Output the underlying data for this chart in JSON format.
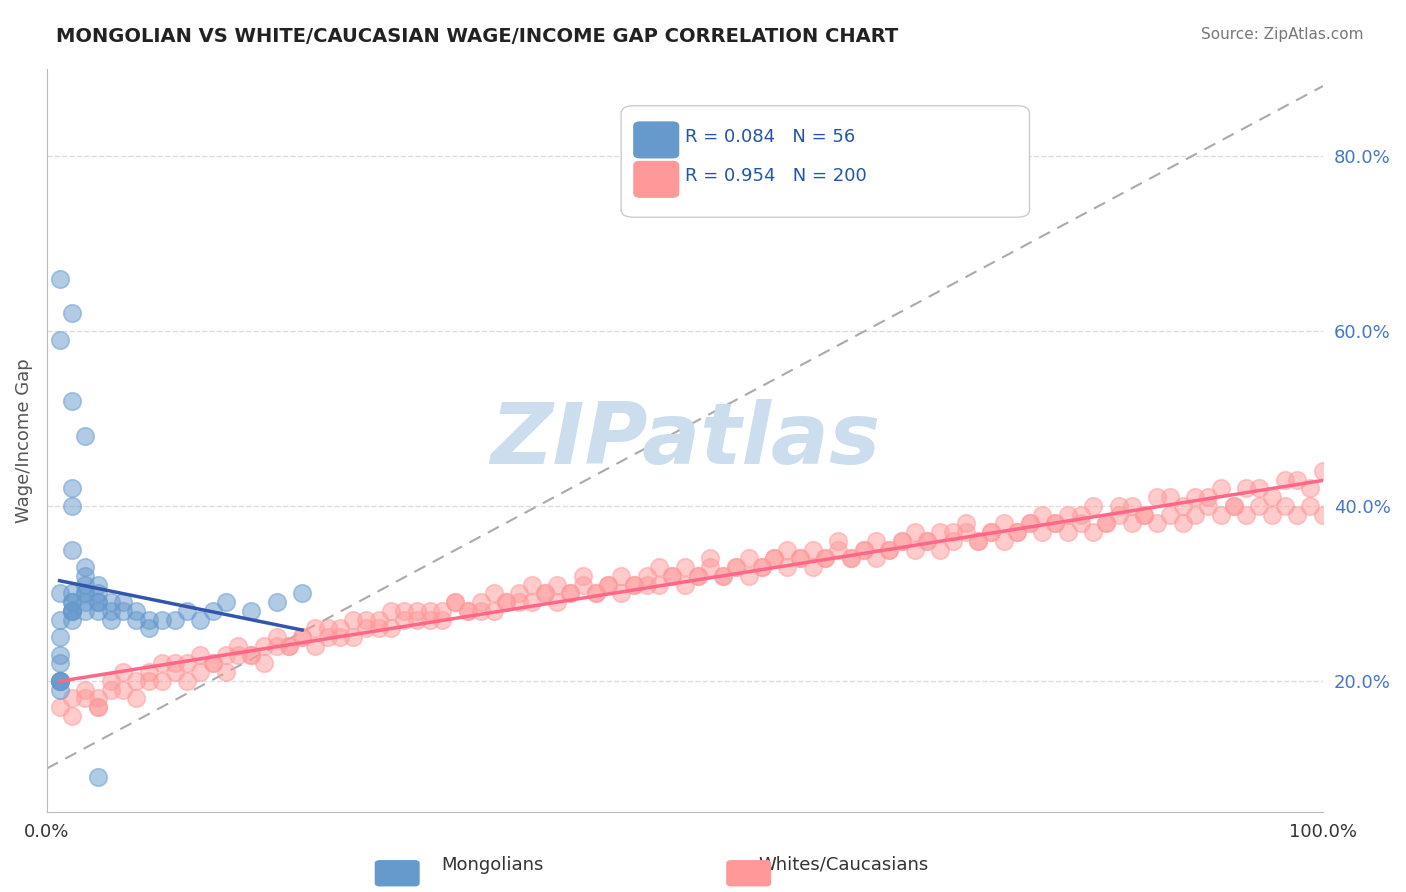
{
  "title": "MONGOLIAN VS WHITE/CAUCASIAN WAGE/INCOME GAP CORRELATION CHART",
  "source": "Source: ZipAtlas.com",
  "xlabel": "",
  "ylabel": "Wage/Income Gap",
  "xlim": [
    0.0,
    1.0
  ],
  "ylim": [
    0.05,
    0.9
  ],
  "xtick_labels": [
    "0.0%",
    "100.0%"
  ],
  "ytick_labels_right": [
    "20.0%",
    "40.0%",
    "60.0%",
    "80.0%"
  ],
  "ytick_vals_right": [
    0.2,
    0.4,
    0.6,
    0.8
  ],
  "legend_blue_label": "Mongolians",
  "legend_pink_label": "Whites/Caucasians",
  "R_blue": "0.084",
  "N_blue": "56",
  "R_pink": "0.954",
  "N_pink": "200",
  "blue_color": "#6699CC",
  "pink_color": "#FF9999",
  "trend_blue_color": "#3355AA",
  "trend_pink_color": "#FF6688",
  "watermark_text": "ZIPatlas",
  "watermark_color": "#CCDDEE",
  "background_color": "#FFFFFF",
  "grid_color": "#DDDDDD",
  "blue_scatter_x": [
    0.01,
    0.01,
    0.01,
    0.01,
    0.01,
    0.01,
    0.01,
    0.01,
    0.01,
    0.01,
    0.02,
    0.02,
    0.02,
    0.02,
    0.02,
    0.02,
    0.02,
    0.02,
    0.02,
    0.02,
    0.03,
    0.03,
    0.03,
    0.03,
    0.03,
    0.03,
    0.03,
    0.04,
    0.04,
    0.04,
    0.04,
    0.04,
    0.05,
    0.05,
    0.05,
    0.06,
    0.06,
    0.07,
    0.07,
    0.08,
    0.08,
    0.09,
    0.1,
    0.11,
    0.12,
    0.13,
    0.14,
    0.16,
    0.18,
    0.2,
    0.01,
    0.01,
    0.02,
    0.02,
    0.03,
    0.04
  ],
  "blue_scatter_y": [
    0.3,
    0.27,
    0.25,
    0.23,
    0.22,
    0.2,
    0.2,
    0.2,
    0.2,
    0.19,
    0.4,
    0.42,
    0.35,
    0.3,
    0.29,
    0.29,
    0.28,
    0.28,
    0.28,
    0.27,
    0.33,
    0.32,
    0.31,
    0.3,
    0.3,
    0.29,
    0.28,
    0.31,
    0.3,
    0.29,
    0.29,
    0.28,
    0.29,
    0.28,
    0.27,
    0.29,
    0.28,
    0.28,
    0.27,
    0.27,
    0.26,
    0.27,
    0.27,
    0.28,
    0.27,
    0.28,
    0.29,
    0.28,
    0.29,
    0.3,
    0.59,
    0.66,
    0.62,
    0.52,
    0.48,
    0.09
  ],
  "pink_scatter_x": [
    0.01,
    0.02,
    0.03,
    0.04,
    0.05,
    0.06,
    0.07,
    0.08,
    0.09,
    0.1,
    0.11,
    0.12,
    0.13,
    0.14,
    0.15,
    0.16,
    0.17,
    0.18,
    0.19,
    0.2,
    0.21,
    0.22,
    0.23,
    0.24,
    0.25,
    0.26,
    0.27,
    0.28,
    0.29,
    0.3,
    0.31,
    0.32,
    0.33,
    0.34,
    0.35,
    0.36,
    0.37,
    0.38,
    0.39,
    0.4,
    0.41,
    0.42,
    0.43,
    0.44,
    0.45,
    0.46,
    0.47,
    0.48,
    0.49,
    0.5,
    0.51,
    0.52,
    0.53,
    0.54,
    0.55,
    0.56,
    0.57,
    0.58,
    0.59,
    0.6,
    0.61,
    0.62,
    0.63,
    0.64,
    0.65,
    0.66,
    0.67,
    0.68,
    0.69,
    0.7,
    0.71,
    0.72,
    0.73,
    0.74,
    0.75,
    0.76,
    0.77,
    0.78,
    0.79,
    0.8,
    0.81,
    0.82,
    0.83,
    0.84,
    0.85,
    0.86,
    0.87,
    0.88,
    0.89,
    0.9,
    0.91,
    0.92,
    0.93,
    0.94,
    0.95,
    0.96,
    0.97,
    0.98,
    0.99,
    1.0,
    0.05,
    0.08,
    0.1,
    0.12,
    0.15,
    0.18,
    0.2,
    0.22,
    0.25,
    0.28,
    0.3,
    0.32,
    0.35,
    0.38,
    0.4,
    0.42,
    0.45,
    0.48,
    0.5,
    0.52,
    0.55,
    0.58,
    0.6,
    0.62,
    0.65,
    0.68,
    0.7,
    0.72,
    0.75,
    0.78,
    0.8,
    0.82,
    0.85,
    0.88,
    0.9,
    0.92,
    0.95,
    0.98,
    0.03,
    0.06,
    0.09,
    0.13,
    0.16,
    0.19,
    0.23,
    0.26,
    0.29,
    0.33,
    0.36,
    0.39,
    0.43,
    0.46,
    0.49,
    0.53,
    0.56,
    0.59,
    0.63,
    0.66,
    0.69,
    0.73,
    0.76,
    0.79,
    0.83,
    0.86,
    0.89,
    0.93,
    0.96,
    0.99,
    0.04,
    0.07,
    0.11,
    0.14,
    0.17,
    0.21,
    0.24,
    0.27,
    0.31,
    0.34,
    0.37,
    0.41,
    0.44,
    0.47,
    0.51,
    0.54,
    0.57,
    0.61,
    0.64,
    0.67,
    0.71,
    0.74,
    0.77,
    0.81,
    0.84,
    0.87,
    0.91,
    0.94,
    0.97,
    1.0,
    0.02,
    0.04
  ],
  "pink_scatter_y": [
    0.17,
    0.18,
    0.19,
    0.18,
    0.2,
    0.21,
    0.2,
    0.21,
    0.22,
    0.21,
    0.22,
    0.23,
    0.22,
    0.23,
    0.24,
    0.23,
    0.24,
    0.25,
    0.24,
    0.25,
    0.26,
    0.25,
    0.26,
    0.27,
    0.26,
    0.27,
    0.28,
    0.27,
    0.28,
    0.27,
    0.28,
    0.29,
    0.28,
    0.29,
    0.28,
    0.29,
    0.3,
    0.29,
    0.3,
    0.29,
    0.3,
    0.31,
    0.3,
    0.31,
    0.3,
    0.31,
    0.32,
    0.31,
    0.32,
    0.31,
    0.32,
    0.33,
    0.32,
    0.33,
    0.32,
    0.33,
    0.34,
    0.33,
    0.34,
    0.33,
    0.34,
    0.35,
    0.34,
    0.35,
    0.34,
    0.35,
    0.36,
    0.35,
    0.36,
    0.35,
    0.36,
    0.37,
    0.36,
    0.37,
    0.36,
    0.37,
    0.38,
    0.37,
    0.38,
    0.37,
    0.38,
    0.37,
    0.38,
    0.39,
    0.38,
    0.39,
    0.38,
    0.39,
    0.38,
    0.39,
    0.4,
    0.39,
    0.4,
    0.39,
    0.4,
    0.39,
    0.4,
    0.39,
    0.4,
    0.39,
    0.19,
    0.2,
    0.22,
    0.21,
    0.23,
    0.24,
    0.25,
    0.26,
    0.27,
    0.28,
    0.28,
    0.29,
    0.3,
    0.31,
    0.31,
    0.32,
    0.32,
    0.33,
    0.33,
    0.34,
    0.34,
    0.35,
    0.35,
    0.36,
    0.36,
    0.37,
    0.37,
    0.38,
    0.38,
    0.39,
    0.39,
    0.4,
    0.4,
    0.41,
    0.41,
    0.42,
    0.42,
    0.43,
    0.18,
    0.19,
    0.2,
    0.22,
    0.23,
    0.24,
    0.25,
    0.26,
    0.27,
    0.28,
    0.29,
    0.3,
    0.3,
    0.31,
    0.32,
    0.32,
    0.33,
    0.34,
    0.34,
    0.35,
    0.36,
    0.36,
    0.37,
    0.38,
    0.38,
    0.39,
    0.4,
    0.4,
    0.41,
    0.42,
    0.17,
    0.18,
    0.2,
    0.21,
    0.22,
    0.24,
    0.25,
    0.26,
    0.27,
    0.28,
    0.29,
    0.3,
    0.31,
    0.31,
    0.32,
    0.33,
    0.34,
    0.34,
    0.35,
    0.36,
    0.37,
    0.37,
    0.38,
    0.39,
    0.4,
    0.41,
    0.41,
    0.42,
    0.43,
    0.44,
    0.16,
    0.17
  ]
}
